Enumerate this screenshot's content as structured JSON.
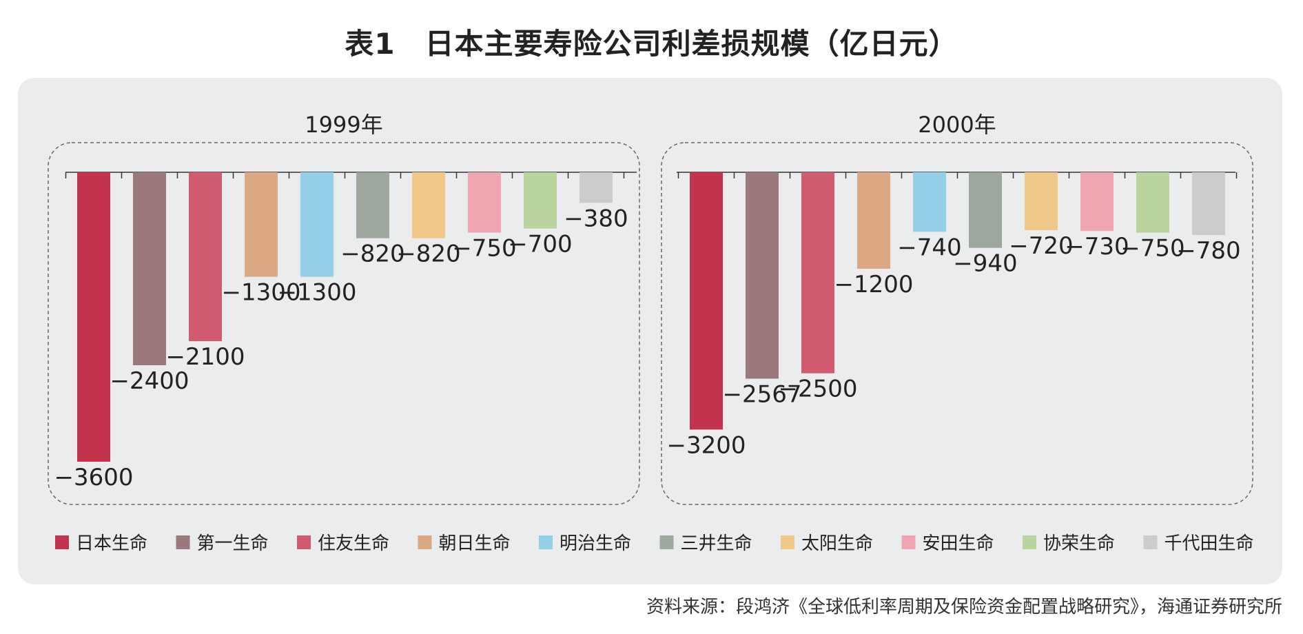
{
  "title": "表1　日本主要寿险公司利差损规模（亿日元）",
  "source": "资料来源：段鸿济《全球低利率周期及保险资金配置战略研究》，海通证券研究所",
  "colors": {
    "日本生命": "#c3334b",
    "第一生命": "#9b787c",
    "住友生命": "#d05a6e",
    "朝日生命": "#dba883",
    "明治生命": "#94cfea",
    "三井生命": "#9fa89f",
    "太阳生命": "#f0c988",
    "安田生命": "#eea7b1",
    "协荣生命": "#b7d59c",
    "千代田生命": "#cbcdca"
  },
  "chart_data": [
    {
      "type": "bar",
      "title": "1999年",
      "categories": [
        "日本生命",
        "第一生命",
        "住友生命",
        "朝日生命",
        "明治生命",
        "三井生命",
        "太阳生命",
        "安田生命",
        "协荣生命",
        "千代田生命"
      ],
      "values": [
        -3600,
        -2400,
        -2100,
        -1300,
        -1300,
        -820,
        -820,
        -750,
        -700,
        -380
      ],
      "labels": [
        "−3600",
        "−2400",
        "−2100",
        "−1300",
        "−1300",
        "−820",
        "−820",
        "−750",
        "−700",
        "−380"
      ]
    },
    {
      "type": "bar",
      "title": "2000年",
      "categories": [
        "日本生命",
        "第一生命",
        "住友生命",
        "朝日生命",
        "明治生命",
        "三井生命",
        "太阳生命",
        "安田生命",
        "协荣生命",
        "千代田生命"
      ],
      "values": [
        -3200,
        -2567,
        -2500,
        -1200,
        -740,
        -940,
        -720,
        -730,
        -750,
        -780
      ],
      "labels": [
        "−3200",
        "−2567",
        "−2500",
        "−1200",
        "−740",
        "−940",
        "−720",
        "−730",
        "−750",
        "−780"
      ]
    }
  ],
  "legend": [
    "日本生命",
    "第一生命",
    "住友生命",
    "朝日生命",
    "明治生命",
    "三井生命",
    "太阳生命",
    "安田生命",
    "协荣生命",
    "千代田生命"
  ]
}
